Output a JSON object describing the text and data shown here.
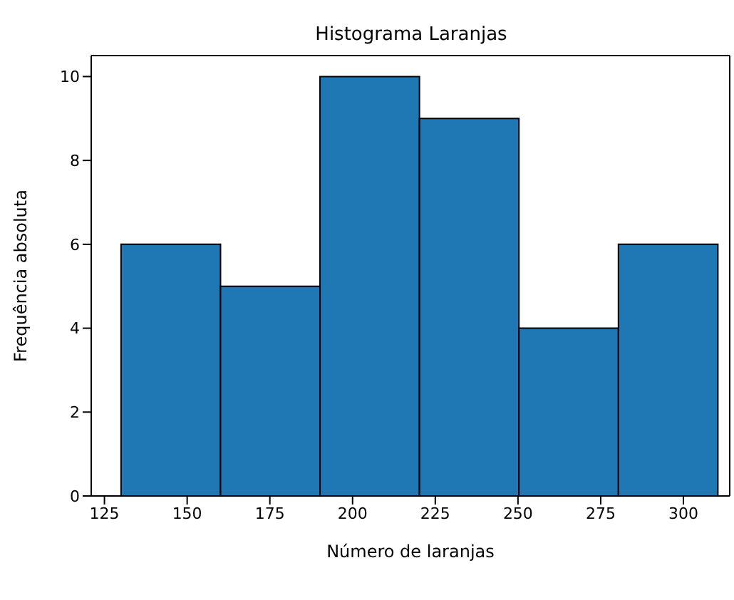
{
  "chart_data": {
    "type": "histogram",
    "title": "Histograma Laranjas",
    "xlabel": "Número de laranjas",
    "ylabel": "Frequência absoluta",
    "bins": [
      130,
      160,
      190,
      220,
      250,
      280,
      310
    ],
    "values": [
      6,
      5,
      10,
      9,
      4,
      6
    ],
    "color": "#1f77b4",
    "xlim": [
      121,
      314
    ],
    "xticks": [
      125,
      150,
      175,
      200,
      225,
      250,
      275,
      300
    ],
    "ylim": [
      0,
      10.5
    ],
    "yticks": [
      0,
      2,
      4,
      6,
      8,
      10
    ]
  }
}
